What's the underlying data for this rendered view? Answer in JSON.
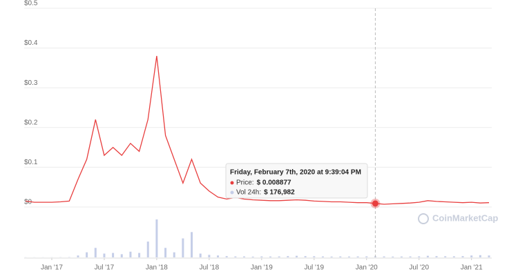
{
  "chart_data": {
    "type": "line",
    "x": [
      "2016-10",
      "2016-11",
      "2016-12",
      "2017-01",
      "2017-02",
      "2017-03",
      "2017-04",
      "2017-05",
      "2017-06",
      "2017-07",
      "2017-08",
      "2017-09",
      "2017-10",
      "2017-11",
      "2017-12",
      "2018-01",
      "2018-02",
      "2018-03",
      "2018-04",
      "2018-05",
      "2018-06",
      "2018-07",
      "2018-08",
      "2018-09",
      "2018-10",
      "2018-11",
      "2018-12",
      "2019-01",
      "2019-02",
      "2019-03",
      "2019-04",
      "2019-05",
      "2019-06",
      "2019-07",
      "2019-08",
      "2019-09",
      "2019-10",
      "2019-11",
      "2019-12",
      "2020-01",
      "2020-02",
      "2020-03",
      "2020-04",
      "2020-05",
      "2020-06",
      "2020-07",
      "2020-08",
      "2020-09",
      "2020-10",
      "2020-11",
      "2020-12",
      "2021-01",
      "2021-02",
      "2021-03"
    ],
    "xlim": [
      "2016-10",
      "2021-03"
    ],
    "xticks": [
      {
        "value": "2017-01",
        "label": "Jan '17"
      },
      {
        "value": "2017-07",
        "label": "Jul '17"
      },
      {
        "value": "2018-01",
        "label": "Jan '18"
      },
      {
        "value": "2018-07",
        "label": "Jul '18"
      },
      {
        "value": "2019-01",
        "label": "Jan '19"
      },
      {
        "value": "2019-07",
        "label": "Jul '19"
      },
      {
        "value": "2020-01",
        "label": "Jan '20"
      },
      {
        "value": "2020-07",
        "label": "Jul '20"
      },
      {
        "value": "2021-01",
        "label": "Jan '21"
      }
    ],
    "ylim": [
      0,
      0.5
    ],
    "yticks": [
      {
        "value": 0,
        "label": "$0"
      },
      {
        "value": 0.1,
        "label": "$0.1"
      },
      {
        "value": 0.2,
        "label": "$0.2"
      },
      {
        "value": 0.3,
        "label": "$0.3"
      },
      {
        "value": 0.4,
        "label": "$0.4"
      },
      {
        "value": 0.5,
        "label": "$0.5"
      }
    ],
    "grid": true,
    "series": [
      {
        "name": "Price",
        "color": "#e83e3e",
        "values": [
          0.015,
          0.012,
          0.012,
          0.012,
          0.013,
          0.015,
          0.07,
          0.12,
          0.22,
          0.13,
          0.15,
          0.13,
          0.16,
          0.14,
          0.22,
          0.38,
          0.18,
          0.12,
          0.06,
          0.12,
          0.06,
          0.04,
          0.025,
          0.02,
          0.024,
          0.02,
          0.018,
          0.017,
          0.016,
          0.016,
          0.017,
          0.018,
          0.017,
          0.015,
          0.014,
          0.013,
          0.013,
          0.012,
          0.011,
          0.011,
          0.009,
          0.007,
          0.008,
          0.009,
          0.01,
          0.012,
          0.016,
          0.014,
          0.013,
          0.012,
          0.011,
          0.012,
          0.01,
          0.011
        ]
      },
      {
        "name": "Vol 24h",
        "color": "#c5cee8",
        "axis": "volume",
        "values": [
          20000,
          15000,
          15000,
          20000,
          30000,
          40000,
          300000,
          800000,
          1500000,
          600000,
          700000,
          500000,
          900000,
          700000,
          2500000,
          6000000,
          1500000,
          800000,
          3000000,
          4000000,
          600000,
          400000,
          300000,
          200000,
          150000,
          150000,
          120000,
          150000,
          140000,
          150000,
          200000,
          250000,
          200000,
          180000,
          150000,
          130000,
          150000,
          140000,
          150000,
          160000,
          176982,
          150000,
          130000,
          140000,
          150000,
          160000,
          250000,
          200000,
          180000,
          170000,
          200000,
          300000,
          350000,
          300000
        ]
      }
    ],
    "tooltip": {
      "x": "2020-02",
      "title": "Friday, February 7th, 2020 at 9:39:04 PM",
      "items": [
        {
          "name": "Price:",
          "value": 0.008877,
          "label": "$ 0.008877",
          "color": "#e83e3e"
        },
        {
          "name": "Vol 24h:",
          "value": 176982,
          "label": "$ 176,982",
          "color": "#c5cee8"
        }
      ]
    },
    "watermark": "CoinMarketCap"
  }
}
